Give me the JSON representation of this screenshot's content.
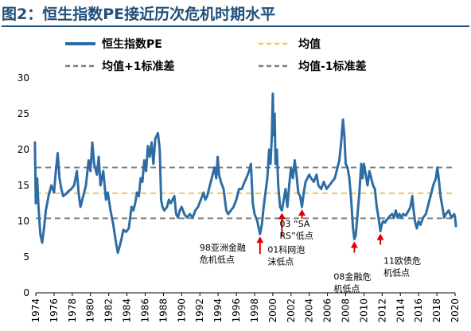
{
  "title": "图2：恒生指数PE接近历次危机时期水平",
  "chart_data": {
    "type": "line",
    "xlabel": "",
    "ylabel": "",
    "xlim": [
      1974,
      2020
    ],
    "ylim": [
      0,
      30
    ],
    "x_ticks": [
      "1974",
      "1976",
      "1978",
      "1980",
      "1982",
      "1984",
      "1986",
      "1988",
      "1990",
      "1992",
      "1994",
      "1996",
      "1998",
      "2000",
      "2002",
      "2004",
      "2006",
      "2008",
      "2010",
      "2012",
      "2014",
      "2016",
      "2018",
      "2020"
    ],
    "y_ticks": [
      "0",
      "5",
      "10",
      "15",
      "20",
      "25",
      "30"
    ],
    "colors": {
      "pe": "#2e6da4",
      "mean": "#f2c85b",
      "sd": "#7f7f7f"
    },
    "legend": {
      "placement": "top",
      "pe": "恒生指数PE",
      "mean": "均值",
      "plus": "均值+1标准差",
      "minus": "均值-1标准差"
    },
    "series": [
      {
        "name": "恒生指数PE",
        "points": [
          [
            1973.9,
            21.0
          ],
          [
            1974.0,
            12.5
          ],
          [
            1974.15,
            16.0
          ],
          [
            1974.3,
            12.0
          ],
          [
            1974.5,
            8.2
          ],
          [
            1974.7,
            7.0
          ],
          [
            1974.9,
            9.0
          ],
          [
            1975.1,
            11.5
          ],
          [
            1975.4,
            13.5
          ],
          [
            1975.7,
            15.0
          ],
          [
            1976.0,
            14.0
          ],
          [
            1976.2,
            17.0
          ],
          [
            1976.4,
            19.5
          ],
          [
            1976.6,
            16.0
          ],
          [
            1976.8,
            14.5
          ],
          [
            1977.0,
            13.5
          ],
          [
            1977.3,
            13.8
          ],
          [
            1977.6,
            14.2
          ],
          [
            1977.9,
            14.5
          ],
          [
            1978.2,
            15.0
          ],
          [
            1978.5,
            17.0
          ],
          [
            1978.7,
            14.0
          ],
          [
            1978.9,
            12.0
          ],
          [
            1979.2,
            13.5
          ],
          [
            1979.5,
            15.0
          ],
          [
            1979.8,
            18.5
          ],
          [
            1980.0,
            17.0
          ],
          [
            1980.2,
            21.0
          ],
          [
            1980.4,
            18.0
          ],
          [
            1980.7,
            16.5
          ],
          [
            1980.9,
            19.0
          ],
          [
            1981.1,
            15.0
          ],
          [
            1981.4,
            17.0
          ],
          [
            1981.7,
            13.0
          ],
          [
            1981.9,
            14.0
          ],
          [
            1982.2,
            11.5
          ],
          [
            1982.5,
            9.5
          ],
          [
            1982.8,
            7.0
          ],
          [
            1983.0,
            5.6
          ],
          [
            1983.2,
            6.5
          ],
          [
            1983.4,
            7.5
          ],
          [
            1983.6,
            8.8
          ],
          [
            1983.9,
            8.5
          ],
          [
            1984.2,
            9.0
          ],
          [
            1984.5,
            12.0
          ],
          [
            1984.7,
            11.5
          ],
          [
            1984.9,
            12.5
          ],
          [
            1985.1,
            14.0
          ],
          [
            1985.3,
            13.5
          ],
          [
            1985.5,
            16.0
          ],
          [
            1985.7,
            15.5
          ],
          [
            1985.9,
            18.5
          ],
          [
            1986.1,
            17.0
          ],
          [
            1986.3,
            20.5
          ],
          [
            1986.5,
            19.0
          ],
          [
            1986.7,
            21.0
          ],
          [
            1986.9,
            18.0
          ],
          [
            1987.1,
            21.5
          ],
          [
            1987.4,
            22.3
          ],
          [
            1987.6,
            20.0
          ],
          [
            1987.75,
            13.0
          ],
          [
            1987.9,
            12.0
          ],
          [
            1988.1,
            11.5
          ],
          [
            1988.4,
            12.0
          ],
          [
            1988.6,
            13.0
          ],
          [
            1988.8,
            12.5
          ],
          [
            1989.0,
            13.0
          ],
          [
            1989.2,
            13.5
          ],
          [
            1989.4,
            11.0
          ],
          [
            1989.6,
            10.5
          ],
          [
            1989.8,
            11.5
          ],
          [
            1990.0,
            12.0
          ],
          [
            1990.3,
            11.0
          ],
          [
            1990.6,
            10.5
          ],
          [
            1990.9,
            11.0
          ],
          [
            1991.2,
            10.5
          ],
          [
            1991.5,
            11.5
          ],
          [
            1991.8,
            12.0
          ],
          [
            1992.1,
            13.0
          ],
          [
            1992.4,
            14.0
          ],
          [
            1992.6,
            13.0
          ],
          [
            1992.8,
            13.5
          ],
          [
            1993.0,
            14.5
          ],
          [
            1993.3,
            16.0
          ],
          [
            1993.6,
            17.5
          ],
          [
            1993.8,
            16.0
          ],
          [
            1993.95,
            19.0
          ],
          [
            1994.1,
            16.5
          ],
          [
            1994.3,
            15.5
          ],
          [
            1994.6,
            14.5
          ],
          [
            1994.9,
            11.5
          ],
          [
            1995.1,
            11.0
          ],
          [
            1995.4,
            11.5
          ],
          [
            1995.7,
            12.0
          ],
          [
            1996.0,
            13.0
          ],
          [
            1996.3,
            14.5
          ],
          [
            1996.6,
            14.5
          ],
          [
            1996.9,
            15.5
          ],
          [
            1997.1,
            16.0
          ],
          [
            1997.4,
            17.0
          ],
          [
            1997.6,
            18.0
          ],
          [
            1997.8,
            12.5
          ],
          [
            1998.0,
            11.0
          ],
          [
            1998.3,
            10.0
          ],
          [
            1998.6,
            8.2
          ],
          [
            1998.8,
            9.5
          ],
          [
            1999.0,
            12.0
          ],
          [
            1999.2,
            14.0
          ],
          [
            1999.4,
            16.0
          ],
          [
            1999.6,
            20.0
          ],
          [
            1999.75,
            18.0
          ],
          [
            1999.9,
            22.0
          ],
          [
            2000.0,
            27.8
          ],
          [
            2000.1,
            22.0
          ],
          [
            2000.2,
            25.0
          ],
          [
            2000.3,
            18.0
          ],
          [
            2000.45,
            20.0
          ],
          [
            2000.6,
            15.0
          ],
          [
            2000.8,
            12.0
          ],
          [
            2001.0,
            11.5
          ],
          [
            2001.2,
            13.0
          ],
          [
            2001.4,
            14.5
          ],
          [
            2001.6,
            12.0
          ],
          [
            2001.8,
            15.0
          ],
          [
            2002.0,
            17.5
          ],
          [
            2002.2,
            16.0
          ],
          [
            2002.4,
            18.5
          ],
          [
            2002.6,
            16.5
          ],
          [
            2002.8,
            14.0
          ],
          [
            2003.0,
            13.5
          ],
          [
            2003.2,
            12.0
          ],
          [
            2003.4,
            14.0
          ],
          [
            2003.6,
            15.5
          ],
          [
            2003.8,
            16.0
          ],
          [
            2004.0,
            16.5
          ],
          [
            2004.2,
            16.0
          ],
          [
            2004.5,
            15.5
          ],
          [
            2004.8,
            16.5
          ],
          [
            2005.0,
            15.0
          ],
          [
            2005.3,
            14.5
          ],
          [
            2005.6,
            15.5
          ],
          [
            2005.9,
            14.5
          ],
          [
            2006.2,
            15.0
          ],
          [
            2006.5,
            15.5
          ],
          [
            2006.8,
            16.0
          ],
          [
            2007.0,
            17.0
          ],
          [
            2007.3,
            18.5
          ],
          [
            2007.5,
            21.0
          ],
          [
            2007.7,
            24.2
          ],
          [
            2007.85,
            22.0
          ],
          [
            2008.0,
            18.0
          ],
          [
            2008.2,
            17.5
          ],
          [
            2008.4,
            16.0
          ],
          [
            2008.6,
            13.0
          ],
          [
            2008.8,
            9.0
          ],
          [
            2008.95,
            7.5
          ],
          [
            2009.1,
            8.0
          ],
          [
            2009.3,
            11.0
          ],
          [
            2009.5,
            14.0
          ],
          [
            2009.7,
            18.0
          ],
          [
            2009.85,
            16.0
          ],
          [
            2010.0,
            18.0
          ],
          [
            2010.2,
            16.5
          ],
          [
            2010.4,
            15.0
          ],
          [
            2010.6,
            17.0
          ],
          [
            2010.8,
            16.0
          ],
          [
            2011.0,
            15.0
          ],
          [
            2011.2,
            14.5
          ],
          [
            2011.4,
            12.0
          ],
          [
            2011.6,
            10.5
          ],
          [
            2011.8,
            8.6
          ],
          [
            2011.95,
            9.5
          ],
          [
            2012.1,
            10.0
          ],
          [
            2012.3,
            9.8
          ],
          [
            2012.5,
            10.2
          ],
          [
            2012.7,
            10.5
          ],
          [
            2012.9,
            10.8
          ],
          [
            2013.1,
            11.0
          ],
          [
            2013.3,
            10.5
          ],
          [
            2013.5,
            11.5
          ],
          [
            2013.7,
            10.5
          ],
          [
            2013.9,
            11.0
          ],
          [
            2014.1,
            10.5
          ],
          [
            2014.3,
            11.0
          ],
          [
            2014.6,
            10.8
          ],
          [
            2014.9,
            11.5
          ],
          [
            2015.1,
            12.0
          ],
          [
            2015.3,
            13.5
          ],
          [
            2015.45,
            11.5
          ],
          [
            2015.6,
            10.0
          ],
          [
            2015.8,
            9.0
          ],
          [
            2016.0,
            10.0
          ],
          [
            2016.2,
            9.5
          ],
          [
            2016.5,
            10.5
          ],
          [
            2016.8,
            11.0
          ],
          [
            2017.0,
            12.0
          ],
          [
            2017.3,
            13.5
          ],
          [
            2017.6,
            15.0
          ],
          [
            2017.9,
            16.0
          ],
          [
            2018.05,
            17.5
          ],
          [
            2018.2,
            16.0
          ],
          [
            2018.4,
            13.5
          ],
          [
            2018.6,
            12.0
          ],
          [
            2018.8,
            10.5
          ],
          [
            2019.0,
            11.0
          ],
          [
            2019.3,
            11.5
          ],
          [
            2019.6,
            10.5
          ],
          [
            2019.9,
            11.0
          ],
          [
            2020.0,
            10.5
          ],
          [
            2020.1,
            9.3
          ]
        ]
      }
    ],
    "mean_value": 13.9,
    "plus_sd_value": 17.5,
    "minus_sd_value": 10.4,
    "annotations": [
      {
        "lines": [
          "98亚洲金融",
          "危机低点"
        ],
        "x": 1998.6,
        "y": 8.2
      },
      {
        "lines": [
          "01科网泡",
          "沫低点"
        ],
        "x": 2001.0,
        "y": 11.5
      },
      {
        "lines": [
          "03 “SA",
          "RS”低点"
        ],
        "x": 2003.2,
        "y": 12.0
      },
      {
        "lines": [
          "08金融危",
          "机低点"
        ],
        "x": 2008.95,
        "y": 7.5
      },
      {
        "lines": [
          "11欧债危",
          "机低点"
        ],
        "x": 2011.8,
        "y": 8.6
      }
    ]
  }
}
